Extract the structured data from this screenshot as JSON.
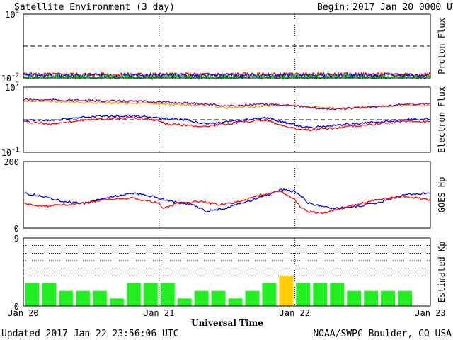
{
  "chart_data": {
    "title": "Satellite Environment (3 day)",
    "begin_label": "Begin:",
    "begin_value": "2017 Jan 20 0000 UTC",
    "xlabel": "Universal Time",
    "x_tick_labels": [
      "Jan 20",
      "Jan 21",
      "Jan 22",
      "Jan 23"
    ],
    "x_range_days": [
      0,
      3
    ],
    "footer_left": "Updated 2017 Jan 22 23:56:06 UTC",
    "footer_right": "NOAA/SWPC Boulder, CO USA",
    "panels": [
      {
        "name": "Proton Flux",
        "type": "line",
        "scale": "log",
        "ylim": [
          0.01,
          10000
        ],
        "y_tick_labels": [
          {
            "base": "10",
            "exp": "4",
            "value": 10000
          },
          {
            "base": "10",
            "exp": "-2",
            "value": 0.01
          }
        ],
        "reference_line": 10,
        "series": [
          {
            "color": "#ff0000",
            "level": 0.021,
            "jitter": 0.18
          },
          {
            "color": "#0000ff",
            "level": 0.017,
            "jitter": 0.18
          },
          {
            "color": "#00dd00",
            "level": 0.012,
            "jitter": 0.2
          }
        ]
      },
      {
        "name": "Electron Flux",
        "type": "line",
        "scale": "log",
        "ylim": [
          0.1,
          10000000
        ],
        "y_tick_labels": [
          {
            "base": "10",
            "exp": "7",
            "value": 10000000
          },
          {
            "base": "10",
            "exp": "-1",
            "value": 0.1
          }
        ],
        "reference_line": 1000,
        "series": [
          {
            "color": "#ff9900",
            "points": [
              [
                0,
                200000
              ],
              [
                0.3,
                160000
              ],
              [
                0.6,
                120000
              ],
              [
                0.9,
                110000
              ],
              [
                1.0,
                90000
              ],
              [
                1.3,
                60000
              ],
              [
                1.5,
                30000
              ],
              [
                1.8,
                50000
              ],
              [
                2.0,
                60000
              ],
              [
                2.1,
                40000
              ],
              [
                2.3,
                25000
              ],
              [
                2.6,
                40000
              ],
              [
                2.8,
                60000
              ],
              [
                3.0,
                50000
              ]
            ]
          },
          {
            "color": "#7a0a9a",
            "points": [
              [
                0,
                300000
              ],
              [
                0.3,
                250000
              ],
              [
                0.6,
                200000
              ],
              [
                0.9,
                180000
              ],
              [
                1.0,
                150000
              ],
              [
                1.3,
                100000
              ],
              [
                1.5,
                50000
              ],
              [
                1.8,
                80000
              ],
              [
                2.0,
                60000
              ],
              [
                2.1,
                30000
              ],
              [
                2.3,
                20000
              ],
              [
                2.6,
                40000
              ],
              [
                2.8,
                80000
              ],
              [
                3.0,
                100000
              ]
            ]
          },
          {
            "color": "#0000ff",
            "points": [
              [
                0,
                1000
              ],
              [
                0.2,
                800
              ],
              [
                0.5,
                2500
              ],
              [
                0.8,
                3000
              ],
              [
                1.0,
                1500
              ],
              [
                1.2,
                1000
              ],
              [
                1.35,
                300
              ],
              [
                1.6,
                800
              ],
              [
                1.8,
                2000
              ],
              [
                1.9,
                600
              ],
              [
                2.0,
                250
              ],
              [
                2.1,
                100
              ],
              [
                2.3,
                200
              ],
              [
                2.6,
                500
              ],
              [
                2.8,
                1000
              ],
              [
                3.0,
                1300
              ]
            ]
          },
          {
            "color": "#ff0000",
            "points": [
              [
                0,
                600
              ],
              [
                0.2,
                300
              ],
              [
                0.5,
                1000
              ],
              [
                0.8,
                2000
              ],
              [
                1.0,
                800
              ],
              [
                1.05,
                300
              ],
              [
                1.35,
                150
              ],
              [
                1.6,
                500
              ],
              [
                1.8,
                1000
              ],
              [
                1.9,
                200
              ],
              [
                2.0,
                80
              ],
              [
                2.1,
                60
              ],
              [
                2.3,
                100
              ],
              [
                2.6,
                300
              ],
              [
                2.8,
                700
              ],
              [
                3.0,
                500
              ]
            ]
          }
        ]
      },
      {
        "name": "GOES Hp",
        "type": "line",
        "scale": "linear",
        "ylim": [
          0,
          200
        ],
        "y_tick_labels": [
          {
            "text": "200",
            "value": 200
          },
          {
            "text": "0",
            "value": 0
          }
        ],
        "series": [
          {
            "color": "#0000ff",
            "points": [
              [
                0,
                105
              ],
              [
                0.15,
                95
              ],
              [
                0.3,
                80
              ],
              [
                0.45,
                75
              ],
              [
                0.6,
                90
              ],
              [
                0.8,
                105
              ],
              [
                0.95,
                95
              ],
              [
                1.1,
                80
              ],
              [
                1.25,
                70
              ],
              [
                1.35,
                50
              ],
              [
                1.5,
                60
              ],
              [
                1.65,
                80
              ],
              [
                1.8,
                100
              ],
              [
                1.9,
                115
              ],
              [
                2.0,
                110
              ],
              [
                2.05,
                95
              ],
              [
                2.1,
                75
              ],
              [
                2.2,
                65
              ],
              [
                2.3,
                60
              ],
              [
                2.45,
                65
              ],
              [
                2.6,
                75
              ],
              [
                2.8,
                100
              ],
              [
                3.0,
                105
              ]
            ]
          },
          {
            "color": "#ff0000",
            "points": [
              [
                0,
                75
              ],
              [
                0.15,
                65
              ],
              [
                0.3,
                70
              ],
              [
                0.45,
                75
              ],
              [
                0.6,
                85
              ],
              [
                0.8,
                90
              ],
              [
                1.0,
                75
              ],
              [
                1.03,
                60
              ],
              [
                1.15,
                75
              ],
              [
                1.3,
                80
              ],
              [
                1.45,
                70
              ],
              [
                1.6,
                80
              ],
              [
                1.75,
                100
              ],
              [
                1.9,
                110
              ],
              [
                2.0,
                85
              ],
              [
                2.05,
                60
              ],
              [
                2.1,
                50
              ],
              [
                2.2,
                45
              ],
              [
                2.3,
                55
              ],
              [
                2.45,
                70
              ],
              [
                2.6,
                85
              ],
              [
                2.8,
                95
              ],
              [
                3.0,
                85
              ]
            ]
          }
        ]
      },
      {
        "name": "Estimated Kp",
        "type": "bar",
        "ylim": [
          0,
          9
        ],
        "y_tick_labels": [
          {
            "text": "9",
            "value": 9
          },
          {
            "text": "0",
            "value": 0
          }
        ],
        "dotted_levels": [
          4,
          5,
          6,
          7,
          8
        ],
        "bar_colors": {
          "normal": "#22ee22",
          "elevated": "#ffcc00"
        },
        "values": [
          3,
          3,
          2,
          2,
          2,
          1,
          3,
          3,
          3,
          1,
          2,
          2,
          1,
          2,
          3,
          4,
          3,
          3,
          3,
          2,
          2,
          2,
          2,
          0
        ]
      }
    ]
  }
}
